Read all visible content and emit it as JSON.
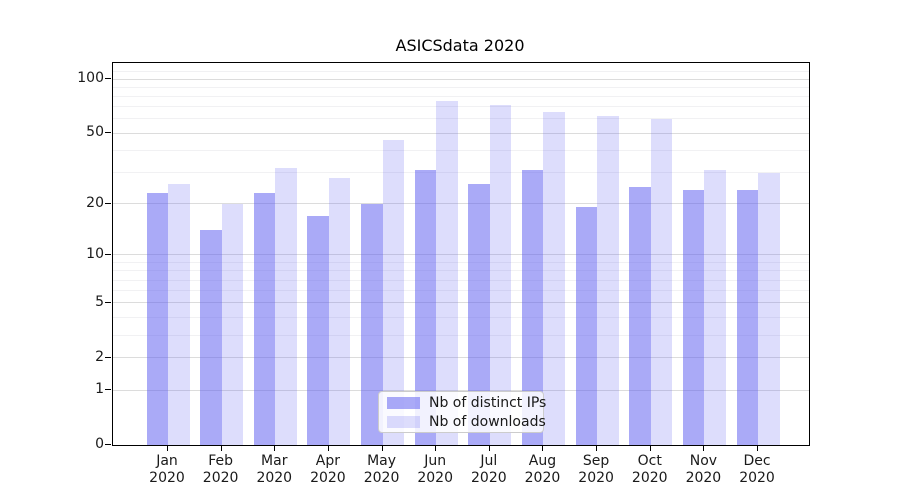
{
  "title": "ASICSdata 2020",
  "chart_data": {
    "type": "bar",
    "title": "ASICSdata 2020",
    "categories": [
      "Jan",
      "Feb",
      "Mar",
      "Apr",
      "May",
      "Jun",
      "Jul",
      "Aug",
      "Sep",
      "Oct",
      "Nov",
      "Dec"
    ],
    "category_year_line": "2020",
    "series": [
      {
        "name": "Nb of distinct IPs",
        "color": "rgba(85,85,240,0.5)",
        "values": [
          23,
          14,
          23,
          17,
          20,
          31,
          26,
          31,
          19,
          25,
          24,
          24
        ]
      },
      {
        "name": "Nb of downloads",
        "color": "rgba(85,85,240,0.2)",
        "values": [
          26,
          20,
          32,
          28,
          46,
          76,
          72,
          66,
          62,
          60,
          31,
          30
        ]
      }
    ],
    "xlabel": "",
    "ylabel": "",
    "yscale": "log1p",
    "ylim": [
      0,
      122
    ],
    "yticks": [
      100,
      50,
      20,
      10,
      5,
      2,
      1,
      0
    ],
    "ytick_labels": [
      "100",
      "50",
      "20",
      "10",
      "5",
      "2",
      "1",
      "0"
    ],
    "yticks_minor": [
      110,
      90,
      80,
      70,
      60,
      40,
      30,
      9,
      8,
      7,
      6,
      4,
      3
    ],
    "grid": true,
    "legend_position": "lower center"
  },
  "colors": {
    "grid_major": "#dcdcdc",
    "grid_minor": "#f1f1f3",
    "axis_spine": "#000000",
    "legend_border": "#cccccc"
  }
}
